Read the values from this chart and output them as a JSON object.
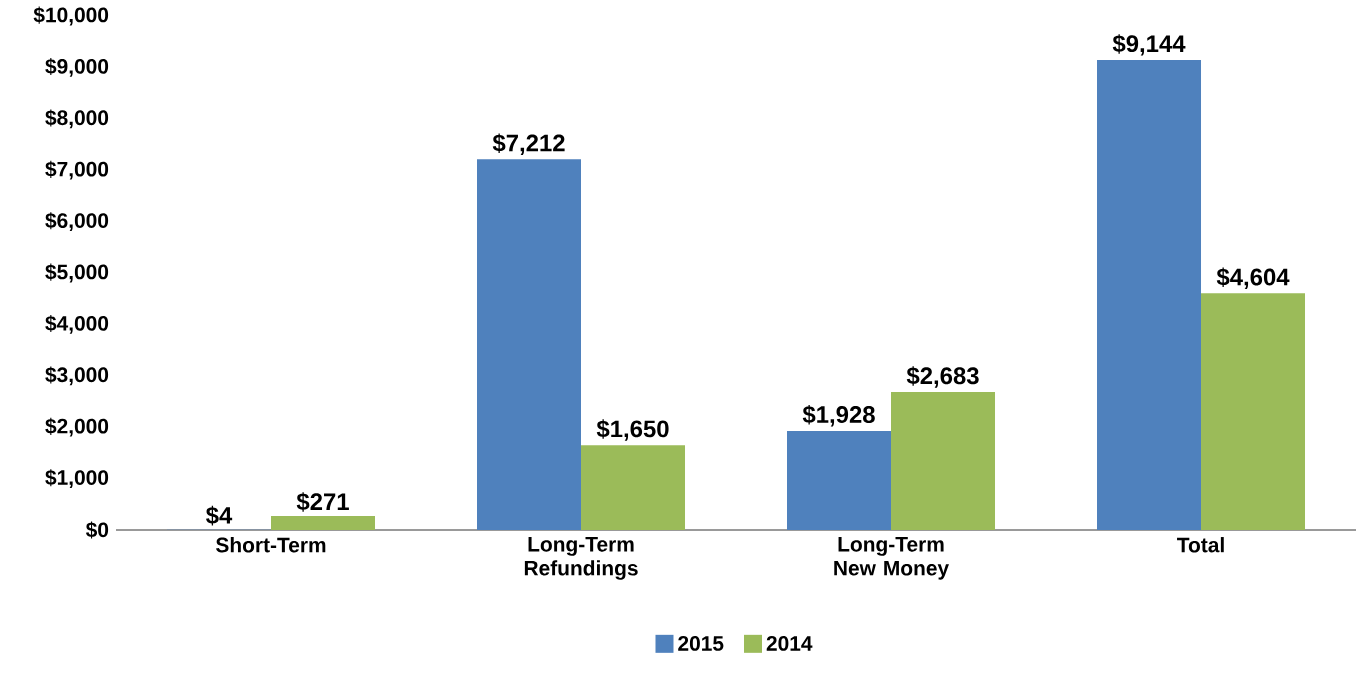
{
  "chart_data": {
    "type": "bar",
    "categories": [
      "Short-Term",
      "Long-Term Refundings",
      "Long-Term New Money",
      "Total"
    ],
    "series": [
      {
        "name": "2015",
        "color": "#4f81bd",
        "values": [
          4,
          7212,
          1928,
          9144
        ],
        "value_labels": [
          "$4",
          "$7,212",
          "$1,928",
          "$9,144"
        ]
      },
      {
        "name": "2014",
        "color": "#9bbb59",
        "values": [
          271,
          1650,
          2683,
          4604
        ],
        "value_labels": [
          "$271",
          "$1,650",
          "$2,683",
          "$4,604"
        ]
      }
    ],
    "ylim": [
      0,
      10000
    ],
    "yticks": [
      {
        "value": 0,
        "label": "$0"
      },
      {
        "value": 1000,
        "label": "$1,000"
      },
      {
        "value": 2000,
        "label": "$2,000"
      },
      {
        "value": 3000,
        "label": "$3,000"
      },
      {
        "value": 4000,
        "label": "$4,000"
      },
      {
        "value": 5000,
        "label": "$5,000"
      },
      {
        "value": 6000,
        "label": "$6,000"
      },
      {
        "value": 7000,
        "label": "$7,000"
      },
      {
        "value": 8000,
        "label": "$8,000"
      },
      {
        "value": 9000,
        "label": "$9,000"
      },
      {
        "value": 10000,
        "label": "$10,000"
      }
    ],
    "legend": "bottom"
  }
}
